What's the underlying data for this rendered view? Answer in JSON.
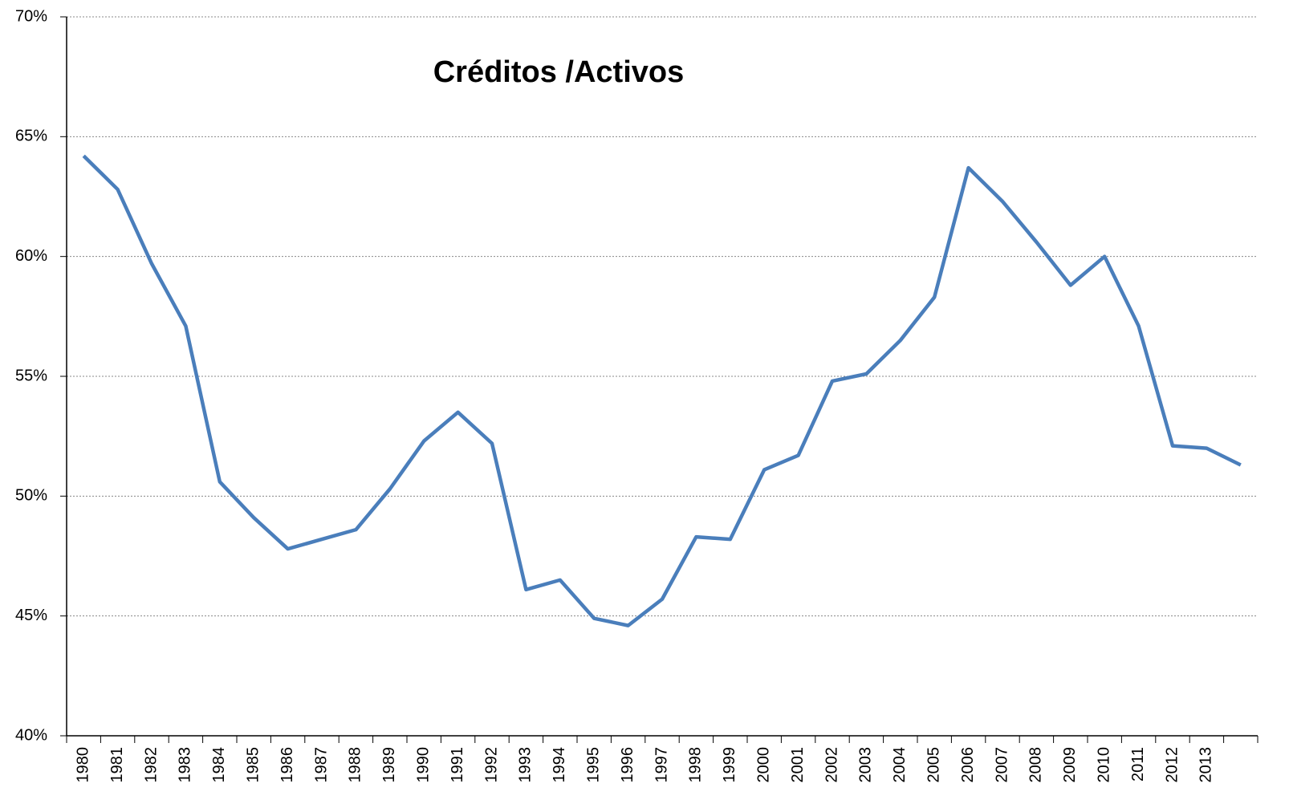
{
  "chart_data": {
    "type": "line",
    "title": "Créditos /Activos",
    "categories": [
      "1980",
      "1981",
      "1982",
      "1983",
      "1984",
      "1985",
      "1986",
      "1987",
      "1988",
      "1989",
      "1990",
      "1991",
      "1992",
      "1993",
      "1994",
      "1995",
      "1996",
      "1997",
      "1998",
      "1999",
      "2000",
      "2001",
      "2002",
      "2003",
      "2004",
      "2005",
      "2006",
      "2007",
      "2008",
      "2009",
      "2010",
      "2011",
      "2012",
      "2013",
      null
    ],
    "series": [
      {
        "color": "#4a7ebb",
        "values": [
          64.2,
          62.8,
          59.7,
          57.1,
          50.6,
          49.1,
          47.8,
          48.2,
          48.6,
          50.3,
          52.3,
          53.5,
          52.2,
          46.1,
          46.5,
          44.9,
          44.6,
          45.7,
          48.3,
          48.2,
          51.1,
          51.7,
          54.8,
          55.1,
          56.5,
          58.3,
          63.7,
          62.3,
          60.6,
          58.8,
          60.0,
          57.1,
          52.1,
          52.0,
          51.3
        ]
      }
    ],
    "ylim": [
      40,
      70
    ],
    "yticks": [
      {
        "value": 40,
        "label": "40%"
      },
      {
        "value": 45,
        "label": "45%"
      },
      {
        "value": 50,
        "label": "50%"
      },
      {
        "value": 55,
        "label": "55%"
      },
      {
        "value": 60,
        "label": "60%"
      },
      {
        "value": 65,
        "label": "65%"
      },
      {
        "value": 70,
        "label": "70%"
      }
    ],
    "grid": true
  }
}
